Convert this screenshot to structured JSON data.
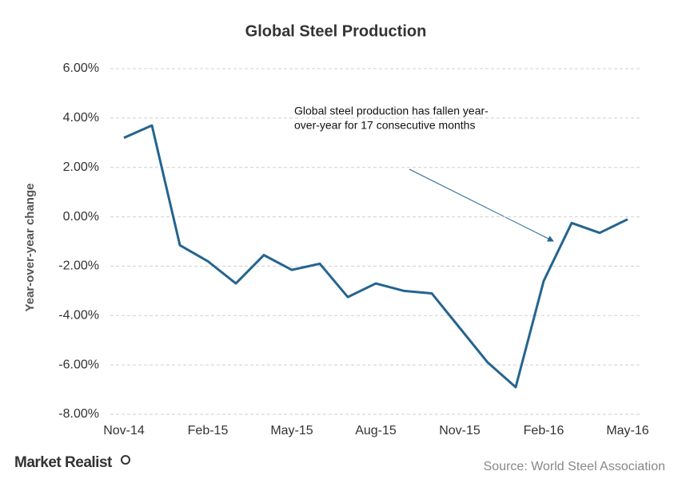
{
  "chart_data": {
    "type": "line",
    "title": "Global  Steel  Production",
    "y_label": "Year-over-year change",
    "categories": [
      "Nov-14",
      null,
      null,
      "Feb-15",
      null,
      null,
      "May-15",
      null,
      null,
      "Aug-15",
      null,
      null,
      "Nov-15",
      null,
      null,
      "Feb-16",
      null,
      null,
      "May-16"
    ],
    "series": [
      {
        "name": "Global steel production",
        "color": "#24648f",
        "values": [
          3.2,
          3.7,
          -1.15,
          -1.8,
          -2.7,
          -1.55,
          -2.15,
          -1.9,
          -3.25,
          -2.7,
          -3.0,
          -3.1,
          -4.5,
          -5.9,
          -6.9,
          -2.6,
          -0.25,
          -0.65,
          -0.1
        ]
      }
    ],
    "ylim": [
      -8,
      6
    ],
    "yticks": [
      {
        "value": -8,
        "label": "-8.00%"
      },
      {
        "value": -6,
        "label": "-6.00%"
      },
      {
        "value": -4,
        "label": "-4.00%"
      },
      {
        "value": -2,
        "label": "-2.00%"
      },
      {
        "value": 0,
        "label": "0.00%"
      },
      {
        "value": 2,
        "label": "2.00%"
      },
      {
        "value": 4,
        "label": "4.00%"
      },
      {
        "value": 6,
        "label": "6.00%"
      }
    ],
    "grid": true,
    "annotation": [
      "Global steel production has fallen year-",
      "over-year for 17 consecutive months"
    ],
    "source": "Source: World Steel Association",
    "brand": "Market Realist"
  }
}
